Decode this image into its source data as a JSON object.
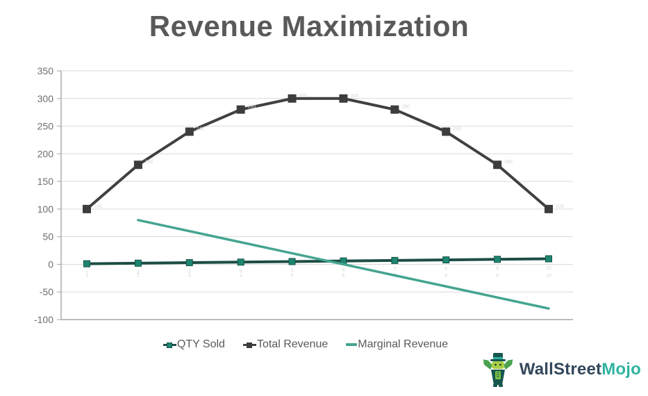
{
  "chart_data": {
    "type": "line",
    "title": "Revenue Maximization",
    "x": [
      1,
      2,
      3,
      4,
      5,
      6,
      7,
      8,
      9,
      10
    ],
    "x_tick_labels": [
      "1",
      "2",
      "3",
      "4",
      "5",
      "6",
      "7",
      "8",
      "9",
      "10"
    ],
    "series": [
      {
        "id": "qty-sold",
        "name": "QTY Sold",
        "values": [
          1,
          2,
          3,
          4,
          5,
          6,
          7,
          8,
          9,
          10
        ],
        "color": "#1d4d45",
        "marker": "square",
        "marker_color": "#1e8570",
        "marker_stroke": "#14544a",
        "marker_size": 9,
        "width": 4,
        "faint_labels": "below"
      },
      {
        "id": "total-revenue",
        "name": "Total Revenue",
        "values": [
          100,
          180,
          240,
          280,
          300,
          300,
          280,
          240,
          180,
          100
        ],
        "color": "#404040",
        "marker": "square",
        "marker_color": "#3d3d3d",
        "marker_stroke": "#3d3d3d",
        "marker_size": 11,
        "width": 4,
        "faint_labels": "right"
      },
      {
        "id": "marginal-revenue",
        "name": "Marginal Revenue",
        "values": [
          null,
          80,
          60,
          40,
          20,
          0,
          -20,
          -40,
          -60,
          -80
        ],
        "color": "#44a491",
        "marker": "none",
        "width": 3.5
      }
    ],
    "ylim": [
      -100,
      350
    ],
    "yticks": [
      350,
      300,
      250,
      200,
      150,
      100,
      50,
      0,
      -50,
      -100
    ],
    "grid": "horizontal",
    "legend_position": "bottom",
    "colors": {
      "gridline": "#d9d9d9",
      "axis_line": "#a6a6a6",
      "tick_label": "#6e6e6e",
      "title": "#595959",
      "faint_label": "#ccd6d3"
    }
  },
  "branding": {
    "brand_first": "WallStreet",
    "brand_second": "Mojo",
    "logo": "bull-mascot-icon"
  }
}
